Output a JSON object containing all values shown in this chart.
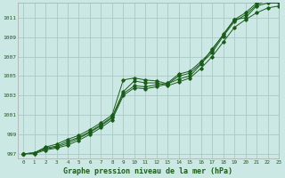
{
  "xlabel": "Graphe pression niveau de la mer (hPa)",
  "bg_color": "#cce8e4",
  "grid_color": "#aac8c4",
  "line_color": "#1a5c1a",
  "xlim": [
    -0.5,
    23
  ],
  "ylim": [
    996.5,
    1012.5
  ],
  "yticks": [
    997,
    999,
    1001,
    1003,
    1005,
    1007,
    1009,
    1011
  ],
  "xticks": [
    0,
    1,
    2,
    3,
    4,
    5,
    6,
    7,
    8,
    9,
    10,
    11,
    12,
    13,
    14,
    15,
    16,
    17,
    18,
    19,
    20,
    21,
    22,
    23
  ],
  "series": [
    [
      997.0,
      997.1,
      997.7,
      998.0,
      998.5,
      998.9,
      999.5,
      1000.2,
      1001.0,
      1004.6,
      1004.8,
      1004.6,
      1004.5,
      1004.2,
      1004.7,
      1005.0,
      1006.2,
      1007.8,
      1009.2,
      1010.8,
      1011.0,
      1012.2,
      1012.5,
      1012.5
    ],
    [
      997.0,
      997.1,
      997.6,
      997.8,
      998.3,
      998.7,
      999.3,
      1000.0,
      1000.8,
      1003.4,
      1004.5,
      1004.3,
      1004.3,
      1004.0,
      1004.4,
      1004.8,
      1005.8,
      1007.0,
      1008.5,
      1010.0,
      1010.8,
      1011.5,
      1012.0,
      1012.2
    ],
    [
      997.0,
      997.1,
      997.5,
      997.7,
      998.1,
      998.6,
      999.2,
      999.9,
      1000.7,
      1003.2,
      1004.0,
      1003.9,
      1004.1,
      1004.3,
      1005.2,
      1005.5,
      1006.5,
      1007.6,
      1009.3,
      1010.8,
      1011.5,
      1012.5,
      1013.0,
      1013.0
    ],
    [
      997.0,
      997.0,
      997.4,
      997.6,
      997.9,
      998.4,
      999.0,
      999.7,
      1000.5,
      1003.0,
      1003.8,
      1003.7,
      1003.9,
      1004.2,
      1005.0,
      1005.3,
      1006.3,
      1007.4,
      1009.1,
      1010.6,
      1011.3,
      1012.3,
      1012.8,
      1012.9
    ]
  ]
}
